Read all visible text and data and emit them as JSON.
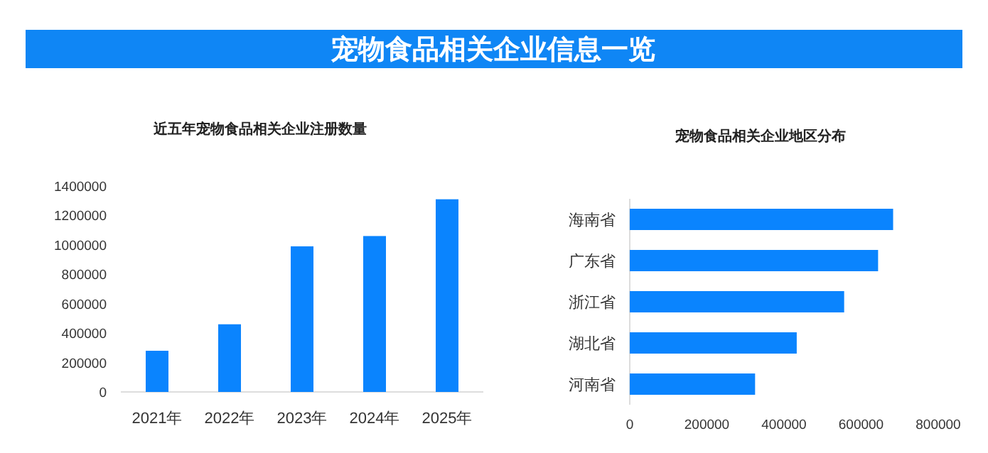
{
  "chart_data": [
    {
      "type": "other",
      "title": "宠物食品相关企业信息一览"
    },
    {
      "type": "bar",
      "title": "近五年宠物食品相关企业注册数量",
      "categories": [
        "2021年",
        "2022年",
        "2023年",
        "2024年",
        "2025年"
      ],
      "values": [
        280000,
        460000,
        990000,
        1060000,
        1310000
      ],
      "color": "#0a84fe",
      "ylim": [
        0,
        1400000
      ],
      "yticks": [
        0,
        200000,
        400000,
        600000,
        800000,
        1000000,
        1200000,
        1400000
      ]
    },
    {
      "type": "bar",
      "orientation": "horizontal",
      "title": "宠物食品相关企业地区分布",
      "categories": [
        "海南省",
        "广东省",
        "浙江省",
        "湖北省",
        "河南省"
      ],
      "values": [
        683000,
        644000,
        556000,
        433000,
        325000
      ],
      "color": "#0a84fe",
      "xlim": [
        0,
        800000
      ],
      "xticks": [
        0,
        200000,
        400000,
        600000,
        800000
      ]
    }
  ]
}
